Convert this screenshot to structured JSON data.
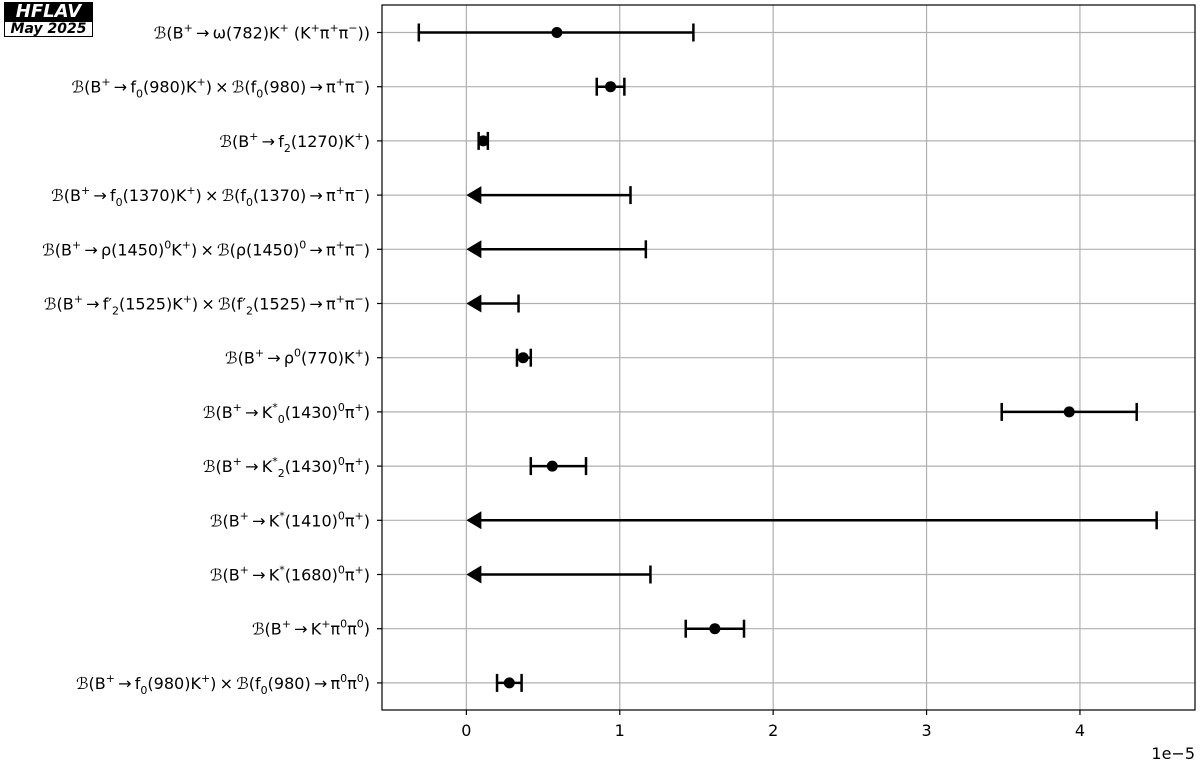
{
  "badge": {
    "brand": "HFLAV",
    "date": "May 2025"
  },
  "chart_data": {
    "type": "errorbar",
    "orientation": "horizontal",
    "x_offset_label": "1e−5",
    "xlim": [
      -0.55,
      4.75
    ],
    "x_ticks": [
      0,
      1,
      2,
      3,
      4
    ],
    "grid": true,
    "rows": [
      {
        "label": [
          "ℬ(B",
          {
            "sup": "+"
          },
          " → ω(782)K",
          {
            "sup": "+"
          },
          " (K",
          {
            "sup": "+"
          },
          "π",
          {
            "sup": "+"
          },
          "π",
          {
            "sup": "−"
          },
          "))"
        ],
        "kind": "measurement",
        "value": 0.59,
        "low": -0.31,
        "high": 1.48
      },
      {
        "label": [
          "ℬ(B",
          {
            "sup": "+"
          },
          " → f",
          {
            "sub": "0"
          },
          "(980)K",
          {
            "sup": "+"
          },
          ") × ℬ(f",
          {
            "sub": "0"
          },
          "(980) → π",
          {
            "sup": "+"
          },
          "π",
          {
            "sup": "−"
          },
          ")"
        ],
        "kind": "measurement",
        "value": 0.94,
        "low": 0.85,
        "high": 1.03
      },
      {
        "label": [
          "ℬ(B",
          {
            "sup": "+"
          },
          " → f",
          {
            "sub": "2"
          },
          "(1270)K",
          {
            "sup": "+"
          },
          ")"
        ],
        "kind": "measurement",
        "value": 0.11,
        "low": 0.08,
        "high": 0.14
      },
      {
        "label": [
          "ℬ(B",
          {
            "sup": "+"
          },
          " → f",
          {
            "sub": "0"
          },
          "(1370)K",
          {
            "sup": "+"
          },
          ") × ℬ(f",
          {
            "sub": "0"
          },
          "(1370) → π",
          {
            "sup": "+"
          },
          "π",
          {
            "sup": "−"
          },
          ")"
        ],
        "kind": "upper_limit",
        "limit": 1.07
      },
      {
        "label": [
          "ℬ(B",
          {
            "sup": "+"
          },
          " → ρ(1450)",
          {
            "sup": "0"
          },
          "K",
          {
            "sup": "+"
          },
          ") × ℬ(ρ(1450)",
          {
            "sup": "0"
          },
          " → π",
          {
            "sup": "+"
          },
          "π",
          {
            "sup": "−"
          },
          ")"
        ],
        "kind": "upper_limit",
        "limit": 1.17
      },
      {
        "label": [
          "ℬ(B",
          {
            "sup": "+"
          },
          " → f′",
          {
            "sub": "2"
          },
          "(1525)K",
          {
            "sup": "+"
          },
          ") × ℬ(f′",
          {
            "sub": "2"
          },
          "(1525) → π",
          {
            "sup": "+"
          },
          "π",
          {
            "sup": "−"
          },
          ")"
        ],
        "kind": "upper_limit",
        "limit": 0.34
      },
      {
        "label": [
          "ℬ(B",
          {
            "sup": "+"
          },
          " → ρ",
          {
            "sup": "0"
          },
          "(770)K",
          {
            "sup": "+"
          },
          ")"
        ],
        "kind": "measurement",
        "value": 0.37,
        "low": 0.33,
        "high": 0.42
      },
      {
        "label": [
          "ℬ(B",
          {
            "sup": "+"
          },
          " → K",
          {
            "sup": "*"
          },
          {
            "sub": "0"
          },
          "(1430)",
          {
            "sup": "0"
          },
          "π",
          {
            "sup": "+"
          },
          ")"
        ],
        "kind": "measurement",
        "value": 3.93,
        "low": 3.49,
        "high": 4.37
      },
      {
        "label": [
          "ℬ(B",
          {
            "sup": "+"
          },
          " → K",
          {
            "sup": "*"
          },
          {
            "sub": "2"
          },
          "(1430)",
          {
            "sup": "0"
          },
          "π",
          {
            "sup": "+"
          },
          ")"
        ],
        "kind": "measurement",
        "value": 0.56,
        "low": 0.42,
        "high": 0.78
      },
      {
        "label": [
          "ℬ(B",
          {
            "sup": "+"
          },
          " → K",
          {
            "sup": "*"
          },
          "(1410)",
          {
            "sup": "0"
          },
          "π",
          {
            "sup": "+"
          },
          ")"
        ],
        "kind": "upper_limit",
        "limit": 4.5
      },
      {
        "label": [
          "ℬ(B",
          {
            "sup": "+"
          },
          " → K",
          {
            "sup": "*"
          },
          "(1680)",
          {
            "sup": "0"
          },
          "π",
          {
            "sup": "+"
          },
          ")"
        ],
        "kind": "upper_limit",
        "limit": 1.2
      },
      {
        "label": [
          "ℬ(B",
          {
            "sup": "+"
          },
          " → K",
          {
            "sup": "+"
          },
          "π",
          {
            "sup": "0"
          },
          "π",
          {
            "sup": "0"
          },
          ")"
        ],
        "kind": "measurement",
        "value": 1.62,
        "low": 1.43,
        "high": 1.81
      },
      {
        "label": [
          "ℬ(B",
          {
            "sup": "+"
          },
          " → f",
          {
            "sub": "0"
          },
          "(980)K",
          {
            "sup": "+"
          },
          ") × ℬ(f",
          {
            "sub": "0"
          },
          "(980) → π",
          {
            "sup": "0"
          },
          "π",
          {
            "sup": "0"
          },
          ")"
        ],
        "kind": "measurement",
        "value": 0.28,
        "low": 0.2,
        "high": 0.36
      }
    ]
  }
}
